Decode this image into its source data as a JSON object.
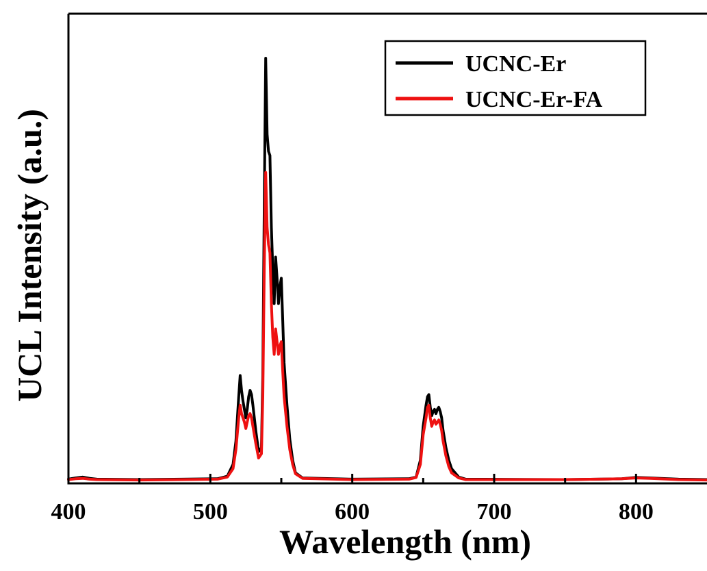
{
  "chart_data": {
    "type": "line",
    "xlabel": "Wavelength (nm)",
    "ylabel": "UCL Intensity (a.u.)",
    "xlim": [
      400,
      850
    ],
    "ylim": [
      0,
      1.0
    ],
    "x_ticks": [
      400,
      500,
      600,
      700,
      800
    ],
    "x_minor_ticks": [
      450,
      550,
      650,
      750
    ],
    "show_y_ticks": false,
    "grid": false,
    "legend_position": "top-right",
    "series": [
      {
        "name": "UCNC-Er",
        "color": "#000000",
        "points": [
          [
            400,
            0.005
          ],
          [
            405,
            0.008
          ],
          [
            410,
            0.01
          ],
          [
            415,
            0.007
          ],
          [
            420,
            0.005
          ],
          [
            450,
            0.004
          ],
          [
            480,
            0.005
          ],
          [
            505,
            0.006
          ],
          [
            512,
            0.012
          ],
          [
            516,
            0.04
          ],
          [
            518,
            0.095
          ],
          [
            520,
            0.2
          ],
          [
            521,
            0.25
          ],
          [
            522,
            0.215
          ],
          [
            523,
            0.19
          ],
          [
            524,
            0.17
          ],
          [
            525,
            0.15
          ],
          [
            526,
            0.17
          ],
          [
            527,
            0.2
          ],
          [
            528,
            0.215
          ],
          [
            529,
            0.205
          ],
          [
            530,
            0.18
          ],
          [
            532,
            0.12
          ],
          [
            534,
            0.07
          ],
          [
            536,
            0.08
          ],
          [
            537,
            0.25
          ],
          [
            538,
            0.65
          ],
          [
            539,
            1.0
          ],
          [
            540,
            0.82
          ],
          [
            541,
            0.78
          ],
          [
            542,
            0.77
          ],
          [
            543,
            0.6
          ],
          [
            544,
            0.5
          ],
          [
            545,
            0.42
          ],
          [
            546,
            0.53
          ],
          [
            547,
            0.48
          ],
          [
            548,
            0.42
          ],
          [
            549,
            0.46
          ],
          [
            550,
            0.48
          ],
          [
            551,
            0.38
          ],
          [
            552,
            0.28
          ],
          [
            554,
            0.18
          ],
          [
            556,
            0.1
          ],
          [
            558,
            0.05
          ],
          [
            560,
            0.02
          ],
          [
            565,
            0.008
          ],
          [
            600,
            0.005
          ],
          [
            640,
            0.006
          ],
          [
            645,
            0.01
          ],
          [
            648,
            0.05
          ],
          [
            650,
            0.13
          ],
          [
            652,
            0.18
          ],
          [
            653,
            0.2
          ],
          [
            654,
            0.205
          ],
          [
            655,
            0.175
          ],
          [
            656,
            0.155
          ],
          [
            657,
            0.165
          ],
          [
            658,
            0.17
          ],
          [
            659,
            0.16
          ],
          [
            660,
            0.17
          ],
          [
            661,
            0.175
          ],
          [
            662,
            0.165
          ],
          [
            663,
            0.15
          ],
          [
            664,
            0.12
          ],
          [
            666,
            0.08
          ],
          [
            668,
            0.05
          ],
          [
            670,
            0.03
          ],
          [
            675,
            0.01
          ],
          [
            680,
            0.005
          ],
          [
            750,
            0.004
          ],
          [
            790,
            0.006
          ],
          [
            800,
            0.009
          ],
          [
            810,
            0.008
          ],
          [
            830,
            0.005
          ],
          [
            850,
            0.004
          ]
        ]
      },
      {
        "name": "UCNC-Er-FA",
        "color": "#ee1111",
        "points": [
          [
            400,
            0.004
          ],
          [
            405,
            0.006
          ],
          [
            410,
            0.007
          ],
          [
            415,
            0.005
          ],
          [
            420,
            0.004
          ],
          [
            450,
            0.003
          ],
          [
            480,
            0.004
          ],
          [
            505,
            0.005
          ],
          [
            512,
            0.01
          ],
          [
            516,
            0.03
          ],
          [
            518,
            0.075
          ],
          [
            520,
            0.15
          ],
          [
            521,
            0.18
          ],
          [
            522,
            0.16
          ],
          [
            523,
            0.15
          ],
          [
            524,
            0.14
          ],
          [
            525,
            0.125
          ],
          [
            526,
            0.14
          ],
          [
            527,
            0.155
          ],
          [
            528,
            0.16
          ],
          [
            529,
            0.15
          ],
          [
            530,
            0.13
          ],
          [
            532,
            0.09
          ],
          [
            534,
            0.055
          ],
          [
            536,
            0.065
          ],
          [
            537,
            0.2
          ],
          [
            538,
            0.5
          ],
          [
            539,
            0.73
          ],
          [
            540,
            0.6
          ],
          [
            541,
            0.56
          ],
          [
            542,
            0.54
          ],
          [
            543,
            0.42
          ],
          [
            544,
            0.34
          ],
          [
            545,
            0.3
          ],
          [
            546,
            0.36
          ],
          [
            547,
            0.33
          ],
          [
            548,
            0.3
          ],
          [
            549,
            0.32
          ],
          [
            550,
            0.33
          ],
          [
            551,
            0.26
          ],
          [
            552,
            0.2
          ],
          [
            554,
            0.13
          ],
          [
            556,
            0.075
          ],
          [
            558,
            0.04
          ],
          [
            560,
            0.018
          ],
          [
            565,
            0.007
          ],
          [
            600,
            0.004
          ],
          [
            640,
            0.005
          ],
          [
            645,
            0.009
          ],
          [
            648,
            0.04
          ],
          [
            650,
            0.11
          ],
          [
            652,
            0.15
          ],
          [
            653,
            0.175
          ],
          [
            654,
            0.18
          ],
          [
            655,
            0.15
          ],
          [
            656,
            0.13
          ],
          [
            657,
            0.14
          ],
          [
            658,
            0.145
          ],
          [
            659,
            0.135
          ],
          [
            660,
            0.14
          ],
          [
            661,
            0.145
          ],
          [
            662,
            0.135
          ],
          [
            663,
            0.12
          ],
          [
            664,
            0.095
          ],
          [
            666,
            0.06
          ],
          [
            668,
            0.035
          ],
          [
            670,
            0.02
          ],
          [
            675,
            0.008
          ],
          [
            680,
            0.004
          ],
          [
            750,
            0.004
          ],
          [
            790,
            0.006
          ],
          [
            800,
            0.008
          ],
          [
            810,
            0.007
          ],
          [
            830,
            0.004
          ],
          [
            850,
            0.003
          ]
        ]
      }
    ]
  }
}
